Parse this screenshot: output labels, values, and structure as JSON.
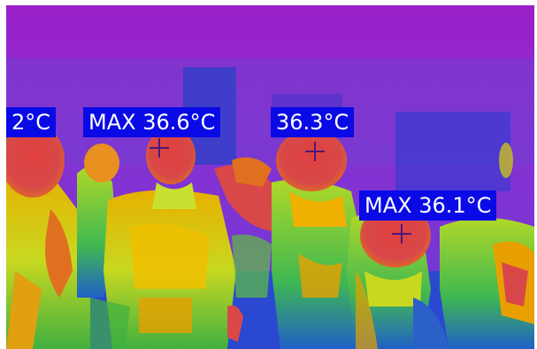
{
  "labels": [
    {
      "text": "2°C"
    },
    {
      "text": "MAX 36.6°C"
    },
    {
      "text": "36.3°C"
    },
    {
      "text": "MAX 36.1°C"
    }
  ],
  "colors": {
    "label_bg": "#0a0ae6",
    "label_text": "#ffffff",
    "hot": "#d8424a",
    "warm": "#f0a000",
    "mid": "#c8e030",
    "cool": "#30c050",
    "cold": "#3050d8",
    "background": "#8a2bc8"
  },
  "icons": [
    "crosshair-icon"
  ]
}
